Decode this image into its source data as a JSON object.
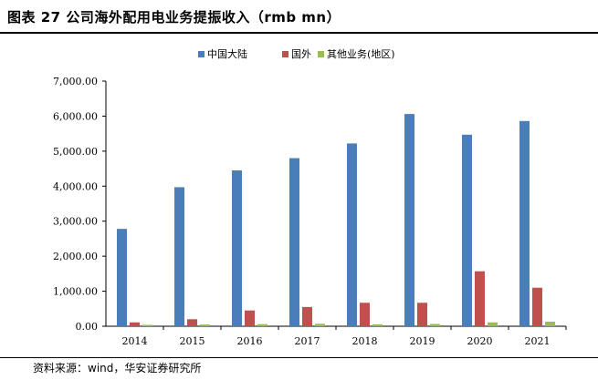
{
  "title": "图表 27 公司海外配用电业务提振收入（rmb mn）",
  "source": "资料来源：wind，华安证券研究所",
  "chart_data": {
    "type": "bar",
    "title": "图表 27 公司海外配用电业务提振收入（rmb mn）",
    "categories": [
      "2014",
      "2015",
      "2016",
      "2017",
      "2018",
      "2019",
      "2020",
      "2021"
    ],
    "series": [
      {
        "name": "中国大陆",
        "color": "#4a7ebb",
        "values": [
          2780,
          3970,
          4450,
          4800,
          5220,
          6060,
          5470,
          5860
        ]
      },
      {
        "name": "国外",
        "color": "#c0504d",
        "values": [
          110,
          200,
          450,
          550,
          670,
          670,
          1570,
          1100
        ]
      },
      {
        "name": "其他业务(地区)",
        "color": "#9bbb59",
        "values": [
          40,
          50,
          60,
          70,
          55,
          65,
          110,
          130
        ]
      }
    ],
    "yticks": [
      "0.00",
      "1,000.00",
      "2,000.00",
      "3,000.00",
      "4,000.00",
      "5,000.00",
      "6,000.00",
      "7,000.00"
    ],
    "ylim": [
      0,
      7000
    ],
    "grid": false,
    "legend": "top-center"
  }
}
